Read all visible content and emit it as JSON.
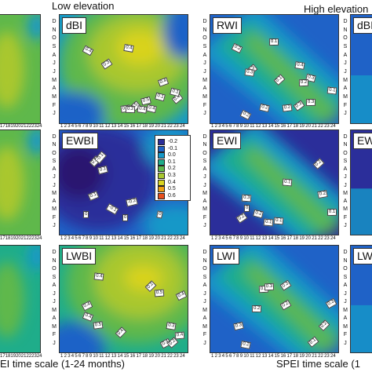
{
  "headers": {
    "low": "Low elevation",
    "high": "High elevation"
  },
  "x_titles": {
    "left": "EI time scale (1-24 months)",
    "right": "SPEI time scale (1"
  },
  "month_letters": [
    "D",
    "N",
    "O",
    "S",
    "A",
    "J",
    "J",
    "M",
    "A",
    "M",
    "F",
    "J"
  ],
  "colors": {
    "palette": [
      "#29166f",
      "#2b2e9a",
      "#1f62c7",
      "#1598c8",
      "#1fad8a",
      "#5fb84b",
      "#a9c72f",
      "#d9d31f",
      "#f0a012",
      "#e8501d",
      "#c81e2a"
    ]
  },
  "chart_data": [
    {
      "type": "heatmap",
      "panels": [
        {
          "label": "dBI",
          "elevation": "low",
          "contour_labels": [
            "0.3",
            "0.4",
            "0.4",
            "0.4",
            "0.5",
            "0.5",
            "0.3",
            "0.4",
            "0.2",
            "0.4",
            "0.4",
            "0.1",
            "0.1"
          ]
        },
        {
          "label": "EWBI",
          "elevation": "low",
          "contour_labels": [
            "0.1",
            "-0.2",
            "0",
            "-0.1",
            "-0.1",
            "-0.2",
            "0.1",
            "0",
            "0.1",
            "0"
          ]
        },
        {
          "label": "LWBI",
          "elevation": "low",
          "contour_labels": [
            "0.5",
            "0.5",
            "0.4",
            "0.4",
            "0.4",
            "0.4",
            "0.4",
            "0.3",
            "0.2",
            "0.2",
            "0.4",
            "0.4"
          ]
        },
        {
          "label": "RWI",
          "elevation": "high",
          "contour_labels": [
            "0.1",
            "0.3",
            "0.2",
            "0.2",
            "0.3",
            "0.3",
            "0.2",
            "0.1",
            "0.2",
            "0.1",
            "0.2",
            "0.3",
            "0.4",
            "0.3"
          ]
        },
        {
          "label": "EWI",
          "elevation": "high",
          "contour_labels": [
            "0",
            "0.1",
            "0.1",
            "0.2",
            "0.1",
            "0.1",
            "0.2",
            "0.3",
            "0.2",
            "0.2"
          ]
        },
        {
          "label": "LWI",
          "elevation": "high",
          "contour_labels": [
            "0.1",
            "0.2",
            "0.3",
            "0.2",
            "0.3",
            "0.2",
            "0.3",
            "0.2",
            "0.3",
            "0.3"
          ]
        }
      ],
      "partial_panel_labels": [
        "dBI",
        "EW",
        "LW"
      ],
      "x_ticks_left": "17 18 19 20 21 22 23 24",
      "x_ticks_mid": "1 2 3 4 5 6 7 8 9 10 11 12 13 14 15 16 17 18 19 20 21 22 23 24",
      "x_ticks_right": "1 2 3 4 5 6 7 8 9 10 11 12 13 14 15 16 17 18 19 20 21 22 23 24",
      "colorbar": {
        "ticks": [
          "-0.2",
          "-0.1",
          "0.0",
          "0.1",
          "0.2",
          "0.3",
          "0.4",
          "0.5",
          "0.6"
        ],
        "colors": [
          "#2b2e9a",
          "#1f62c7",
          "#1598c8",
          "#1fad8a",
          "#5fb84b",
          "#a9c72f",
          "#d9d31f",
          "#f0a012",
          "#e8501d"
        ]
      },
      "xlim": [
        1,
        24
      ]
    }
  ]
}
